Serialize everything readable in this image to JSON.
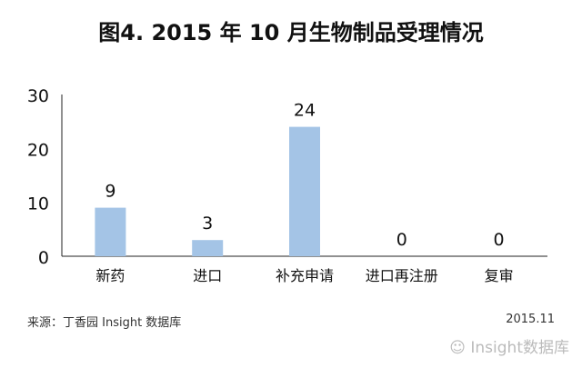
{
  "chart_data": {
    "type": "bar",
    "title": "图4. 2015 年 10 月生物制品受理情况",
    "categories": [
      "新药",
      "进口",
      "补充申请",
      "进口再注册",
      "复审"
    ],
    "values": [
      9,
      3,
      24,
      0,
      0
    ],
    "ylim": [
      0,
      30
    ],
    "yticks": [
      0,
      10,
      20,
      30
    ],
    "xlabel": "",
    "ylabel": "",
    "grid": false,
    "bar_color": "#a4c4e6"
  },
  "footer": {
    "source": "来源：丁香园 Insight 数据库",
    "date": "2015.11",
    "watermark": "Insight数据库"
  }
}
